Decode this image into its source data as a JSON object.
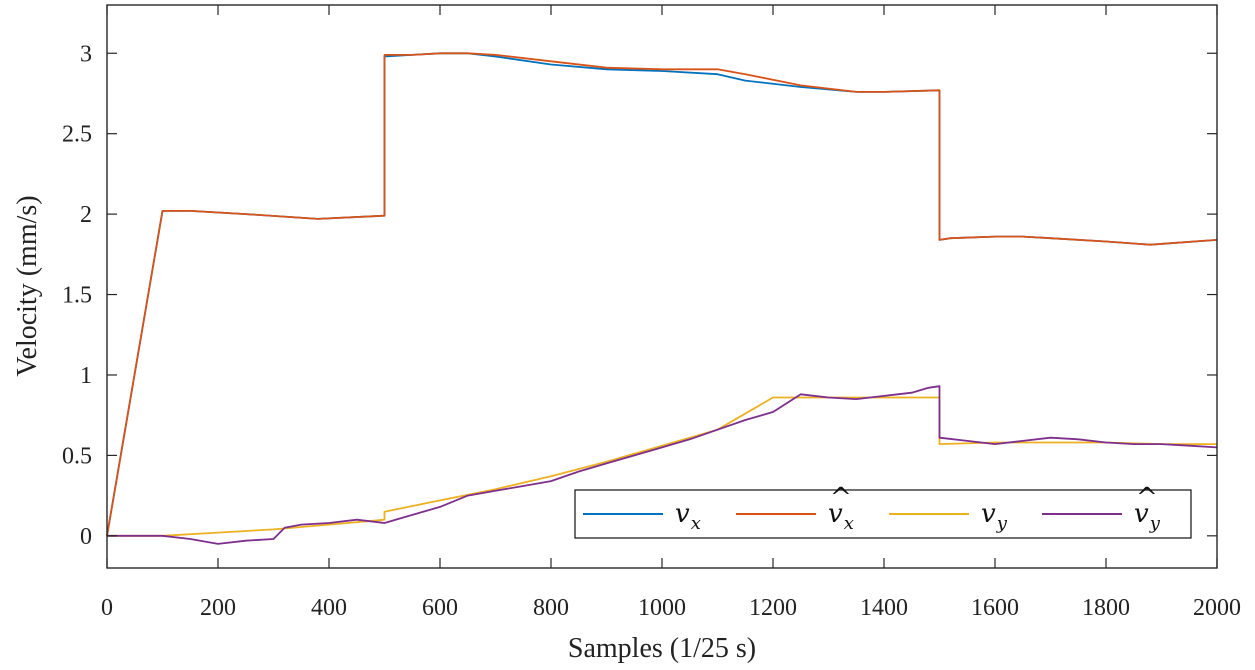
{
  "chart_data": {
    "type": "line",
    "title": "",
    "xlabel": "Samples (1/25 s)",
    "ylabel": "Velocity (mm/s)",
    "xlim": [
      0,
      2000
    ],
    "ylim": [
      -0.2,
      3.3
    ],
    "xticks": [
      0,
      200,
      400,
      600,
      800,
      1000,
      1200,
      1400,
      1600,
      1800,
      2000
    ],
    "yticks": [
      0,
      0.5,
      1,
      1.5,
      2,
      2.5,
      3
    ],
    "xtick_labels": [
      "0",
      "200",
      "400",
      "600",
      "800",
      "1000",
      "1200",
      "1400",
      "1600",
      "1800",
      "2000"
    ],
    "ytick_labels": [
      "0",
      "0.5",
      "1",
      "1.5",
      "2",
      "2.5",
      "3"
    ],
    "grid": false,
    "legend_position": "bottom-right",
    "series": [
      {
        "name": "v_x",
        "legend_main": "v",
        "legend_sub": "x",
        "legend_hat": false,
        "color": "#0072BD",
        "x": [
          0,
          100,
          150,
          250,
          380,
          500,
          500,
          550,
          600,
          650,
          700,
          800,
          900,
          1000,
          1100,
          1150,
          1250,
          1350,
          1400,
          1500,
          1500,
          1520,
          1600,
          1650,
          1700,
          1800,
          1880,
          2000
        ],
        "y": [
          0,
          2.02,
          2.02,
          2.0,
          1.97,
          1.99,
          2.98,
          2.99,
          3.0,
          3.0,
          2.98,
          2.93,
          2.9,
          2.89,
          2.87,
          2.83,
          2.79,
          2.76,
          2.76,
          2.77,
          1.84,
          1.85,
          1.86,
          1.86,
          1.85,
          1.83,
          1.81,
          1.84
        ]
      },
      {
        "name": "v̂_x",
        "legend_main": "v",
        "legend_sub": "x",
        "legend_hat": true,
        "color": "#D95319",
        "x": [
          0,
          100,
          150,
          250,
          380,
          500,
          500,
          550,
          600,
          650,
          700,
          800,
          900,
          1000,
          1100,
          1150,
          1250,
          1350,
          1400,
          1500,
          1500,
          1520,
          1600,
          1650,
          1700,
          1800,
          1880,
          2000
        ],
        "y": [
          0,
          2.02,
          2.02,
          2.0,
          1.97,
          1.99,
          2.99,
          2.99,
          3.0,
          3.0,
          2.99,
          2.95,
          2.91,
          2.9,
          2.9,
          2.87,
          2.8,
          2.76,
          2.76,
          2.77,
          1.84,
          1.85,
          1.86,
          1.86,
          1.85,
          1.83,
          1.81,
          1.84
        ]
      },
      {
        "name": "v_y",
        "legend_main": "v",
        "legend_sub": "y",
        "legend_hat": false,
        "color": "#EDB120",
        "x": [
          0,
          100,
          200,
          300,
          400,
          500,
          500,
          600,
          700,
          800,
          900,
          1000,
          1100,
          1200,
          1300,
          1400,
          1500,
          1500,
          1600,
          1700,
          1800,
          1900,
          2000
        ],
        "y": [
          0,
          0.0,
          0.02,
          0.04,
          0.07,
          0.1,
          0.15,
          0.22,
          0.29,
          0.37,
          0.46,
          0.56,
          0.66,
          0.86,
          0.86,
          0.86,
          0.86,
          0.57,
          0.58,
          0.58,
          0.58,
          0.57,
          0.57
        ]
      },
      {
        "name": "v̂_y",
        "legend_main": "v",
        "legend_sub": "y",
        "legend_hat": true,
        "color": "#7E2F8E",
        "x": [
          0,
          50,
          100,
          150,
          200,
          250,
          300,
          320,
          350,
          400,
          450,
          500,
          520,
          550,
          600,
          650,
          700,
          750,
          800,
          850,
          900,
          950,
          1000,
          1050,
          1100,
          1150,
          1200,
          1250,
          1300,
          1350,
          1400,
          1450,
          1480,
          1500,
          1500,
          1550,
          1600,
          1650,
          1700,
          1750,
          1800,
          1850,
          1900,
          1950,
          2000
        ],
        "y": [
          0,
          0.0,
          0.0,
          -0.02,
          -0.05,
          -0.03,
          -0.02,
          0.05,
          0.07,
          0.08,
          0.1,
          0.08,
          0.1,
          0.13,
          0.18,
          0.25,
          0.28,
          0.31,
          0.34,
          0.4,
          0.45,
          0.5,
          0.55,
          0.6,
          0.66,
          0.72,
          0.77,
          0.88,
          0.86,
          0.85,
          0.87,
          0.89,
          0.92,
          0.93,
          0.61,
          0.59,
          0.57,
          0.59,
          0.61,
          0.6,
          0.58,
          0.57,
          0.57,
          0.56,
          0.55
        ]
      }
    ]
  }
}
